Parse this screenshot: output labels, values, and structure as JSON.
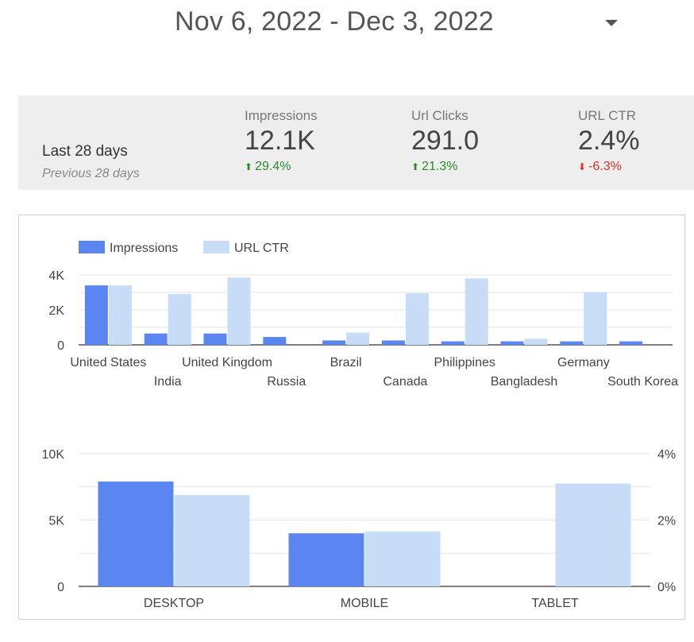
{
  "header": {
    "date_range": "Nov 6, 2022 - Dec 3, 2022",
    "dropdown_icon": "caret-down-icon"
  },
  "summary": {
    "period": "Last 28 days",
    "previous_period": "Previous 28 days",
    "metrics": [
      {
        "label": "Impressions",
        "value": "12.1K",
        "change": "29.4%",
        "direction": "up"
      },
      {
        "label": "Url Clicks",
        "value": "291.0",
        "change": "21.3%",
        "direction": "up"
      },
      {
        "label": "URL CTR",
        "value": "2.4%",
        "change": "-6.3%",
        "direction": "down"
      }
    ],
    "colors": {
      "up": "#2e8b2e",
      "down": "#d93025",
      "background": "#eeeeee"
    }
  },
  "chart_data": [
    {
      "type": "bar",
      "legend": [
        "Impressions",
        "URL CTR"
      ],
      "legend_position": "top-left",
      "colors": [
        "#5b86f1",
        "#c6dcf7"
      ],
      "categories": [
        "United States",
        "India",
        "United Kingdom",
        "Russia",
        "Brazil",
        "Canada",
        "Philippines",
        "Bangladesh",
        "Germany",
        "South Korea"
      ],
      "series": [
        {
          "name": "Impressions",
          "values": [
            3400,
            650,
            650,
            450,
            250,
            250,
            200,
            200,
            200,
            200
          ]
        },
        {
          "name": "URL CTR",
          "values": [
            3400,
            2900,
            3850,
            0,
            700,
            2950,
            3800,
            350,
            3000,
            0
          ]
        }
      ],
      "yticks": [
        "4K",
        "2K",
        "0"
      ],
      "ylim": [
        0,
        4000
      ],
      "grid": true
    },
    {
      "type": "bar",
      "categories": [
        "DESKTOP",
        "MOBILE",
        "TABLET"
      ],
      "series": [
        {
          "name": "Impressions",
          "values": [
            7900,
            4000,
            0
          ],
          "axis": "left"
        },
        {
          "name": "URL CTR",
          "values": [
            2.75,
            1.65,
            3.1
          ],
          "axis": "right"
        }
      ],
      "colors": [
        "#5b86f1",
        "#c6dcf7"
      ],
      "yticks_left": [
        "10K",
        "5K",
        "0"
      ],
      "yticks_right": [
        "4%",
        "2%",
        "0%"
      ],
      "ylim_left": [
        0,
        10000
      ],
      "ylim_right": [
        0,
        4
      ],
      "grid": true
    }
  ]
}
